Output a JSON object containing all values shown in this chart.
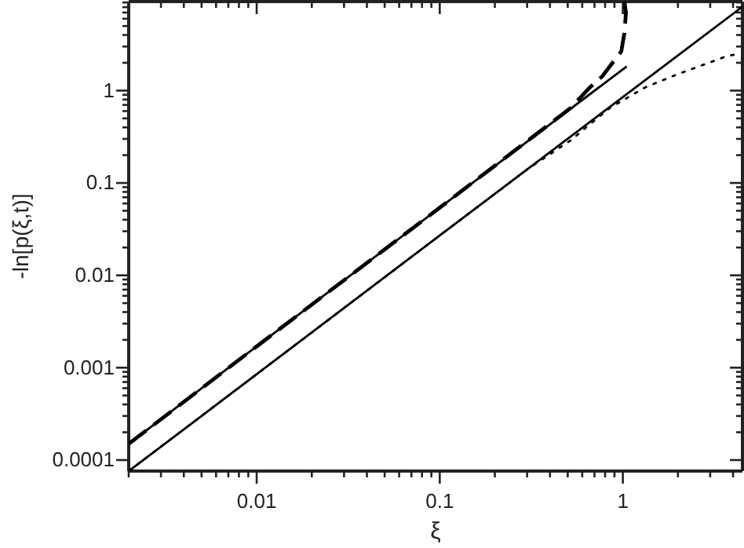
{
  "chart_data": {
    "type": "line",
    "xlabel": "ξ",
    "ylabel": "-ln[p(ξ,t)]",
    "log": "xy",
    "marker": "none",
    "xlim": [
      0.002,
      4.5
    ],
    "ylim": [
      7.6e-05,
      9.2
    ],
    "xticks": [
      {
        "value": 0.002,
        "label": null
      },
      {
        "value": 0.003,
        "label": null
      },
      {
        "value": 0.004,
        "label": null
      },
      {
        "value": 0.005,
        "label": null
      },
      {
        "value": 0.006,
        "label": null
      },
      {
        "value": 0.007,
        "label": null
      },
      {
        "value": 0.008,
        "label": null
      },
      {
        "value": 0.009,
        "label": null
      },
      0.01,
      {
        "value": 0.02,
        "label": null
      },
      {
        "value": 0.03,
        "label": null
      },
      {
        "value": 0.04,
        "label": null
      },
      {
        "value": 0.05,
        "label": null
      },
      {
        "value": 0.06,
        "label": null
      },
      {
        "value": 0.07,
        "label": null
      },
      {
        "value": 0.08,
        "label": null
      },
      {
        "value": 0.09,
        "label": null
      },
      0.1,
      {
        "value": 0.2,
        "label": null
      },
      {
        "value": 0.3,
        "label": null
      },
      {
        "value": 0.4,
        "label": null
      },
      {
        "value": 0.5,
        "label": null
      },
      {
        "value": 0.6,
        "label": null
      },
      {
        "value": 0.7,
        "label": null
      },
      {
        "value": 0.8,
        "label": null
      },
      {
        "value": 0.9,
        "label": null
      },
      1,
      {
        "value": 2,
        "label": null
      },
      {
        "value": 3,
        "label": null
      },
      {
        "value": 4,
        "label": null
      }
    ],
    "yticks": [
      {
        "value": 0.0001,
        "label": "0.0001"
      },
      {
        "value": 0.0002,
        "label": null
      },
      {
        "value": 0.0003,
        "label": null
      },
      {
        "value": 0.0004,
        "label": null
      },
      {
        "value": 0.0005,
        "label": null
      },
      {
        "value": 0.0006,
        "label": null
      },
      {
        "value": 0.0007,
        "label": null
      },
      {
        "value": 0.0008,
        "label": null
      },
      {
        "value": 0.0009,
        "label": null
      },
      0.001,
      {
        "value": 0.002,
        "label": null
      },
      {
        "value": 0.003,
        "label": null
      },
      {
        "value": 0.004,
        "label": null
      },
      {
        "value": 0.005,
        "label": null
      },
      {
        "value": 0.006,
        "label": null
      },
      {
        "value": 0.007,
        "label": null
      },
      {
        "value": 0.008,
        "label": null
      },
      {
        "value": 0.009,
        "label": null
      },
      0.01,
      {
        "value": 0.02,
        "label": null
      },
      {
        "value": 0.03,
        "label": null
      },
      {
        "value": 0.04,
        "label": null
      },
      {
        "value": 0.05,
        "label": null
      },
      {
        "value": 0.06,
        "label": null
      },
      {
        "value": 0.07,
        "label": null
      },
      {
        "value": 0.08,
        "label": null
      },
      {
        "value": 0.09,
        "label": null
      },
      0.1,
      {
        "value": 0.2,
        "label": null
      },
      {
        "value": 0.3,
        "label": null
      },
      {
        "value": 0.4,
        "label": null
      },
      {
        "value": 0.5,
        "label": null
      },
      {
        "value": 0.6,
        "label": null
      },
      {
        "value": 0.7,
        "label": null
      },
      {
        "value": 0.8,
        "label": null
      },
      {
        "value": 0.9,
        "label": null
      },
      1,
      {
        "value": 2,
        "label": null
      },
      {
        "value": 3,
        "label": null
      },
      {
        "value": 4,
        "label": null
      },
      {
        "value": 5,
        "label": null
      },
      {
        "value": 6,
        "label": null
      },
      {
        "value": 7,
        "label": null
      },
      {
        "value": 8,
        "label": null
      },
      {
        "value": 9,
        "label": null
      }
    ],
    "series": [
      {
        "color": "#000000",
        "line_style": "solid",
        "x": [
          0.002,
          0.01,
          0.1,
          1,
          4.5
        ],
        "values": [
          7.6e-05,
          0.00085,
          0.027,
          0.85,
          8.1
        ]
      },
      {
        "color": "#000000",
        "line_style": "solid",
        "x": [
          0.002,
          0.01,
          0.1,
          1.05
        ],
        "values": [
          0.00015,
          0.0017,
          0.054,
          1.83
        ]
      },
      {
        "color": "#000000",
        "line_style": "dashed",
        "x": [
          0.002,
          0.01,
          0.1,
          0.52,
          0.66,
          0.77,
          0.98,
          1.02,
          1.04,
          1.02
        ],
        "values": [
          0.00015,
          0.0017,
          0.054,
          0.65,
          1.08,
          1.42,
          2.65,
          4.2,
          7,
          9.2
        ]
      },
      {
        "color": "#000000",
        "line_style": "dotted",
        "x": [
          0.002,
          0.01,
          0.1,
          0.3,
          0.52,
          0.64,
          0.85,
          1.32,
          1.95,
          3.7,
          4.3
        ],
        "values": [
          7.6e-05,
          0.00085,
          0.027,
          0.14,
          0.29,
          0.41,
          0.65,
          1.08,
          1.48,
          2.36,
          2.5
        ]
      }
    ]
  }
}
